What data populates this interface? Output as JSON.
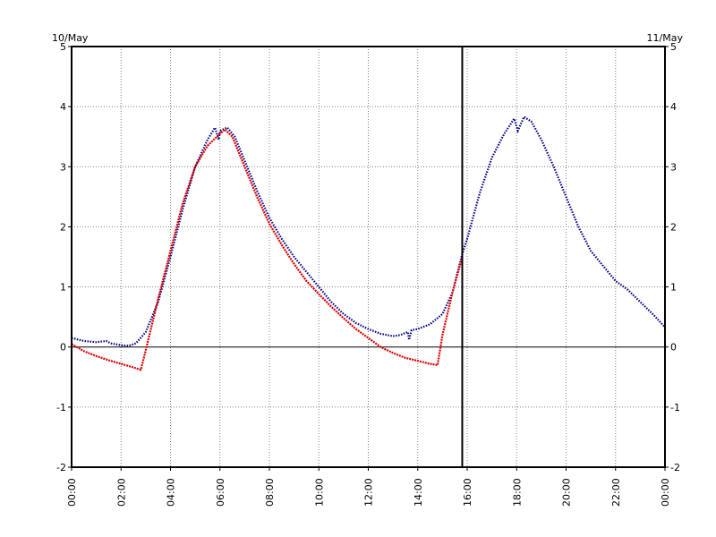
{
  "chart_data": {
    "type": "line",
    "date_left": "10/May",
    "date_right": "11/May",
    "x_ticks": [
      "00:00",
      "02:00",
      "04:00",
      "06:00",
      "08:00",
      "10:00",
      "12:00",
      "14:00",
      "16:00",
      "18:00",
      "20:00",
      "22:00",
      "00:00"
    ],
    "y_ticks": [
      "5",
      "4",
      "3",
      "2",
      "1",
      "0",
      "-1",
      "-2"
    ],
    "xlim_hours": [
      0,
      24
    ],
    "ylim": [
      -2,
      5
    ],
    "grid": true,
    "cursor_hour": 15.8,
    "colors": {
      "forecast": "#00008b",
      "observed": "#dd0000",
      "axis": "#000000",
      "grid": "#808080"
    },
    "series": [
      {
        "points": [
          [
            0,
            0.15
          ],
          [
            0.5,
            0.1
          ],
          [
            1,
            0.08
          ],
          [
            1.4,
            0.1
          ],
          [
            1.6,
            0.06
          ],
          [
            2,
            0.03
          ],
          [
            2.3,
            0.02
          ],
          [
            2.6,
            0.06
          ],
          [
            3,
            0.25
          ],
          [
            3.5,
            0.75
          ],
          [
            4,
            1.5
          ],
          [
            4.5,
            2.3
          ],
          [
            5,
            3.0
          ],
          [
            5.5,
            3.45
          ],
          [
            5.8,
            3.65
          ],
          [
            5.95,
            3.45
          ],
          [
            6,
            3.6
          ],
          [
            6.3,
            3.65
          ],
          [
            6.6,
            3.5
          ],
          [
            7,
            3.1
          ],
          [
            7.5,
            2.6
          ],
          [
            8,
            2.15
          ],
          [
            8.5,
            1.8
          ],
          [
            9,
            1.5
          ],
          [
            9.5,
            1.25
          ],
          [
            10,
            1.0
          ],
          [
            10.5,
            0.75
          ],
          [
            11,
            0.55
          ],
          [
            11.5,
            0.4
          ],
          [
            12,
            0.3
          ],
          [
            12.5,
            0.22
          ],
          [
            13,
            0.18
          ],
          [
            13.3,
            0.2
          ],
          [
            13.6,
            0.25
          ],
          [
            13.65,
            0.12
          ],
          [
            13.75,
            0.28
          ],
          [
            14,
            0.3
          ],
          [
            14.5,
            0.38
          ],
          [
            15,
            0.55
          ],
          [
            15.4,
            0.9
          ],
          [
            15.8,
            1.55
          ],
          [
            16,
            1.8
          ],
          [
            16.5,
            2.55
          ],
          [
            17,
            3.15
          ],
          [
            17.5,
            3.55
          ],
          [
            17.9,
            3.8
          ],
          [
            18.05,
            3.6
          ],
          [
            18.3,
            3.83
          ],
          [
            18.6,
            3.75
          ],
          [
            19,
            3.45
          ],
          [
            19.5,
            3.0
          ],
          [
            20,
            2.5
          ],
          [
            20.5,
            2.0
          ],
          [
            21,
            1.6
          ],
          [
            21.5,
            1.35
          ],
          [
            22,
            1.1
          ],
          [
            22.5,
            0.95
          ],
          [
            23,
            0.75
          ],
          [
            23.5,
            0.55
          ],
          [
            24,
            0.33
          ]
        ]
      },
      {
        "points": [
          [
            0,
            0.05
          ],
          [
            0.5,
            -0.07
          ],
          [
            1,
            -0.15
          ],
          [
            1.5,
            -0.22
          ],
          [
            2,
            -0.28
          ],
          [
            2.5,
            -0.34
          ],
          [
            2.8,
            -0.38
          ],
          [
            3,
            -0.05
          ],
          [
            3.5,
            0.8
          ],
          [
            4,
            1.6
          ],
          [
            4.5,
            2.4
          ],
          [
            5,
            3.0
          ],
          [
            5.5,
            3.35
          ],
          [
            6,
            3.55
          ],
          [
            6.2,
            3.62
          ],
          [
            6.5,
            3.5
          ],
          [
            7,
            3.0
          ],
          [
            7.5,
            2.5
          ],
          [
            8,
            2.05
          ],
          [
            8.5,
            1.7
          ],
          [
            9,
            1.38
          ],
          [
            9.5,
            1.1
          ],
          [
            10,
            0.88
          ],
          [
            10.5,
            0.67
          ],
          [
            11,
            0.48
          ],
          [
            11.5,
            0.3
          ],
          [
            12,
            0.15
          ],
          [
            12.5,
            0.0
          ],
          [
            13,
            -0.1
          ],
          [
            13.5,
            -0.18
          ],
          [
            14,
            -0.23
          ],
          [
            14.5,
            -0.28
          ],
          [
            14.8,
            -0.3
          ],
          [
            15,
            0.2
          ],
          [
            15.4,
            0.9
          ],
          [
            15.8,
            1.5
          ]
        ]
      }
    ]
  }
}
